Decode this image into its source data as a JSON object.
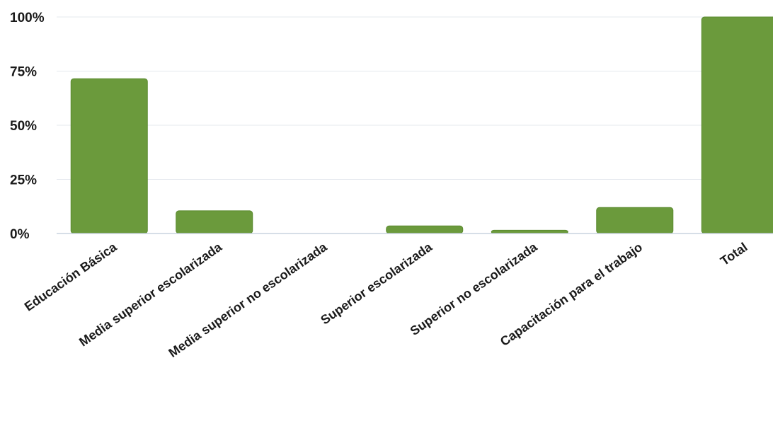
{
  "chart_data": {
    "type": "bar",
    "title": "",
    "xlabel": "",
    "ylabel": "",
    "ylim": [
      0,
      100
    ],
    "y_ticks": [
      "0%",
      "25%",
      "50%",
      "75%",
      "100%"
    ],
    "y_tick_values": [
      0,
      25,
      50,
      75,
      100
    ],
    "grid": true,
    "legend": "none",
    "bar_color": "#6b9a3c",
    "categories": [
      "Educación Básica",
      "Media superior escolarizada",
      "Media superior no escolarizada",
      "Superior escolarizada",
      "Superior no escolarizada",
      "Capacitación para el trabajo",
      "Total"
    ],
    "values": [
      71.5,
      10.5,
      0,
      3.5,
      1.5,
      12,
      100
    ]
  }
}
